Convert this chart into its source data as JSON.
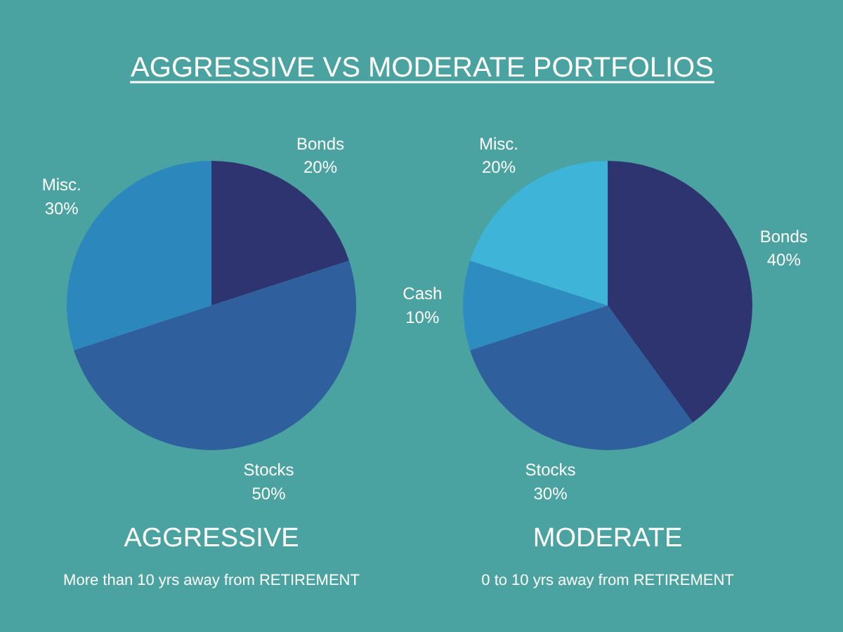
{
  "chart_data": [
    {
      "type": "other",
      "title": "AGGRESSIVE VS MODERATE PORTFOLIOS"
    },
    {
      "type": "pie",
      "title": "AGGRESSIVE",
      "subtitle": "More than 10 yrs away from RETIREMENT",
      "categories": [
        "Bonds",
        "Stocks",
        "Misc."
      ],
      "values": [
        20,
        50,
        30
      ],
      "colors": [
        "#2e3470",
        "#2f5f9c",
        "#2c87bd"
      ],
      "value_labels": [
        "20%",
        "50%",
        "30%"
      ]
    },
    {
      "type": "pie",
      "title": "MODERATE",
      "subtitle": "0 to 10 yrs away from RETIREMENT",
      "categories": [
        "Bonds",
        "Stocks",
        "Cash",
        "Misc."
      ],
      "values": [
        40,
        30,
        10,
        20
      ],
      "colors": [
        "#2e3470",
        "#2f5f9c",
        "#2e8cc0",
        "#3eb4d8"
      ],
      "value_labels": [
        "40%",
        "30%",
        "10%",
        "20%"
      ]
    }
  ]
}
